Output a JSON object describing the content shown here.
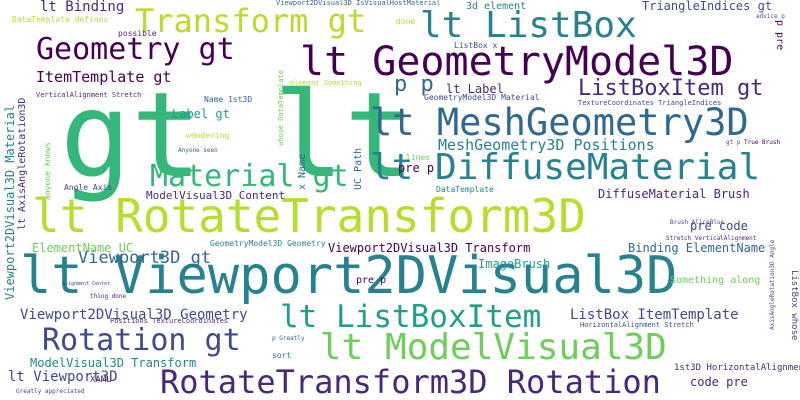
{
  "words": [
    {
      "text": "gt lt"
    },
    {
      "text": "lt Viewport2DVisual3D"
    },
    {
      "text": "lt RotateTransform3D"
    },
    {
      "text": "lt GeometryModel3D"
    },
    {
      "text": "lt MeshGeometry3D"
    },
    {
      "text": "lt DiffuseMaterial"
    },
    {
      "text": "lt ModelVisual3D"
    },
    {
      "text": "RotateTransform3D Rotation"
    },
    {
      "text": "lt ListBox"
    },
    {
      "text": "Transform gt"
    },
    {
      "text": "Geometry gt"
    },
    {
      "text": "Material gt"
    },
    {
      "text": "lt ListBoxItem"
    },
    {
      "text": "Rotation gt"
    },
    {
      "text": "ListBoxItem gt"
    },
    {
      "text": "Viewport3D gt"
    },
    {
      "text": "Viewport2DVisual3D Geometry"
    },
    {
      "text": "MeshGeometry3D Positions"
    },
    {
      "text": "ListBox ItemTemplate"
    },
    {
      "text": "ItemTemplate gt"
    },
    {
      "text": "lt Binding"
    },
    {
      "text": "lt Viewport3D"
    },
    {
      "text": "ModelVisual3D Transform"
    },
    {
      "text": "Viewport2DVisual3D Transform"
    },
    {
      "text": "Binding ElementName"
    },
    {
      "text": "ElementName UC"
    },
    {
      "text": "ModelVisual3D Content"
    },
    {
      "text": "DiffuseMaterial Brush"
    },
    {
      "text": "Label gt"
    },
    {
      "text": "lt Label"
    },
    {
      "text": "p p"
    },
    {
      "text": "pre code"
    },
    {
      "text": "code pre"
    },
    {
      "text": "pre p"
    },
    {
      "text": "3d element"
    },
    {
      "text": "TriangleIndices gt"
    },
    {
      "text": "ImageBrush"
    },
    {
      "text": "GeometryModel3D Geometry"
    },
    {
      "text": "GeometryModel3D Material"
    },
    {
      "text": "1st3D HorizontalAlignment"
    },
    {
      "text": "Something along"
    },
    {
      "text": "Name 1st3D"
    },
    {
      "text": "UC Path"
    },
    {
      "text": "x Name"
    },
    {
      "text": "Viewport2DVisual3D Material"
    },
    {
      "text": "lt AxisAngleRotation3D"
    },
    {
      "text": "anyone knows"
    },
    {
      "text": "Angle Axis"
    },
    {
      "text": "DataTemplate defines"
    },
    {
      "text": "possible"
    },
    {
      "text": "VerticalAlignment Stretch"
    },
    {
      "text": "whose DataTemplate"
    },
    {
      "text": "element Something"
    },
    {
      "text": "ListBox whose"
    },
    {
      "text": "wondering"
    },
    {
      "text": "DataTemplate"
    },
    {
      "text": "lines"
    },
    {
      "text": "Positions TextureCoordinates"
    },
    {
      "text": "HorizontalAlignment Stretch"
    },
    {
      "text": "Stretch VerticalAlignment"
    },
    {
      "text": "Brush AliceBlue"
    },
    {
      "text": "AxisAngleRotation3D Angle"
    },
    {
      "text": "True Brush"
    },
    {
      "text": "Greatly appreciated"
    },
    {
      "text": "XAML"
    },
    {
      "text": "sort"
    },
    {
      "text": "thing done"
    },
    {
      "text": "p Greatly"
    },
    {
      "text": "Anyone seen"
    },
    {
      "text": "Viewport2DVisual3D IsVisualHostMaterial"
    },
    {
      "text": "TextureCoordinates TriangleIndices"
    },
    {
      "text": "pre p"
    },
    {
      "text": "done"
    },
    {
      "text": "ListBox x"
    },
    {
      "text": "advice p"
    },
    {
      "text": "p pre"
    },
    {
      "text": "gt p"
    },
    {
      "text": "Alignment Center"
    }
  ]
}
